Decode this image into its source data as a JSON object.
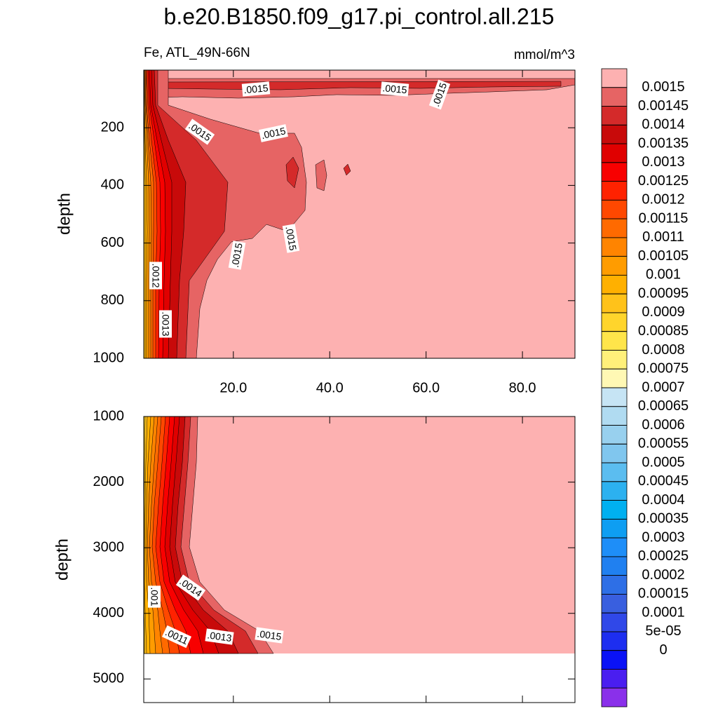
{
  "chart_data": [
    {
      "type": "contour",
      "title": "b.e20.B1850.f09_g17.pi_control.all.215",
      "subtitle_left": "Fe, ATL_49N-66N",
      "subtitle_right": "mmol/m^3",
      "y_label": "depth",
      "xlim": [
        1.4,
        90.9
      ],
      "ylim": [
        0,
        1000
      ],
      "xticks": [
        {
          "value": 20,
          "label": "20.0"
        },
        {
          "value": 40,
          "label": "40.0"
        },
        {
          "value": 60,
          "label": "60.0"
        },
        {
          "value": 80,
          "label": "80.0"
        }
      ],
      "yticks": [
        200,
        400,
        600,
        800,
        1000
      ],
      "contour_labels": [
        ".0015",
        ".0015",
        ".0015",
        ".0015",
        ".0015",
        ".0015",
        ".0015",
        ".0012",
        ".0013"
      ],
      "colorbar": {
        "levels": [
          0.0015,
          0.00145,
          0.0014,
          0.00135,
          0.0013,
          0.00125,
          0.0012,
          0.00115,
          0.0011,
          0.00105,
          0.001,
          0.00095,
          0.0009,
          0.00085,
          0.0008,
          0.00075,
          0.0007,
          0.00065,
          0.0006,
          0.00055,
          0.0005,
          0.00045,
          0.0004,
          0.00035,
          0.0003,
          0.00025,
          0.0002,
          0.00015,
          0.0001,
          {
            "value": 5e-05,
            "label": "5e-05"
          },
          0
        ],
        "colors": [
          "#fdb1b1",
          "#e66464",
          "#d42a2a",
          "#c80a0a",
          "#e00000",
          "#f80000",
          "#ff2200",
          "#ff4800",
          "#ff6a00",
          "#ff8400",
          "#ff9c00",
          "#ffb000",
          "#ffc21a",
          "#ffd52c",
          "#ffe54a",
          "#fff07a",
          "#fff8b4",
          "#c6e4f4",
          "#b0dbf1",
          "#98d0ee",
          "#80c6ee",
          "#5bbdf0",
          "#2cb1f0",
          "#00b0f0",
          "#0e9ef2",
          "#1e8ef8",
          "#2080f0",
          "#2e6fe6",
          "#395fdf",
          "#3048e8",
          "#1d2ef0",
          "#0a12f6",
          "#4a1ef0",
          "#8a30ea"
        ]
      }
    },
    {
      "type": "contour",
      "y_label": "depth",
      "xlim": [
        1.4,
        90.9
      ],
      "ylim": [
        1000,
        5360
      ],
      "xticks": [
        20,
        40,
        60,
        80
      ],
      "yticks": [
        1000,
        2000,
        3000,
        4000,
        5000
      ],
      "contour_labels": [
        ".0014",
        ".001",
        ".0011",
        ".0013",
        ".0015"
      ]
    }
  ]
}
